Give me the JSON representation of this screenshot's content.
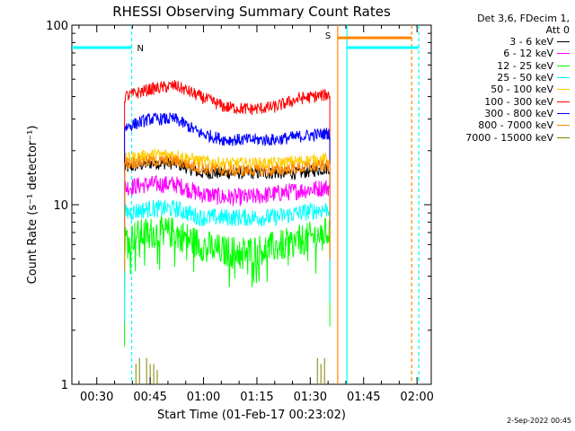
{
  "chart_data": {
    "type": "line",
    "title": "RHESSI Observing Summary Count Rates",
    "xlabel": "Start Time (01-Feb-17 00:23:02)",
    "ylabel": "Count Rate (s⁻¹ detector⁻¹)",
    "yscale": "log",
    "ylim": [
      1,
      100
    ],
    "y_ticks": [
      "1",
      "10",
      "100"
    ],
    "x_unit": "minutes after 00:00 on 01-Feb-17",
    "xlim": [
      23.0,
      124.0
    ],
    "x_ticks": [
      {
        "label": "00:30",
        "value": 30
      },
      {
        "label": "00:45",
        "value": 45
      },
      {
        "label": "01:00",
        "value": 60
      },
      {
        "label": "01:15",
        "value": 75
      },
      {
        "label": "01:30",
        "value": 90
      },
      {
        "label": "01:45",
        "value": 105
      },
      {
        "label": "02:00",
        "value": 120
      }
    ],
    "data_interval_minutes": [
      37.8,
      95.5
    ],
    "series": [
      {
        "name": "3 - 6 keV",
        "color": "#000000",
        "x": [
          38,
          45,
          52,
          59,
          66,
          73,
          80,
          87,
          95
        ],
        "values": [
          16,
          17,
          17,
          15,
          15,
          15,
          15,
          15,
          16
        ]
      },
      {
        "name": "6 - 12 keV",
        "color": "#ff00ff",
        "x": [
          38,
          45,
          52,
          59,
          66,
          73,
          80,
          87,
          95
        ],
        "values": [
          12.5,
          13,
          13,
          11.5,
          11,
          11,
          11.5,
          12,
          12.5
        ]
      },
      {
        "name": "12 - 25 keV",
        "color": "#00ff00",
        "x": [
          38,
          45,
          52,
          59,
          66,
          73,
          80,
          87,
          95
        ],
        "values": [
          6.5,
          7,
          7,
          6,
          5.5,
          5.5,
          5.8,
          6.3,
          7
        ]
      },
      {
        "name": "25 - 50 keV",
        "color": "#00ffff",
        "x": [
          38,
          45,
          52,
          59,
          66,
          73,
          80,
          87,
          95
        ],
        "values": [
          9,
          9.5,
          9.5,
          8.5,
          8.5,
          8.5,
          8.5,
          9,
          9.5
        ]
      },
      {
        "name": "50 - 100 keV",
        "color": "#ffcc00",
        "x": [
          38,
          45,
          52,
          59,
          66,
          73,
          80,
          87,
          95
        ],
        "values": [
          18,
          19,
          19,
          17.5,
          17,
          17,
          17,
          17.5,
          18
        ]
      },
      {
        "name": "100 - 300 keV",
        "color": "#ff0000",
        "x": [
          38,
          45,
          52,
          59,
          66,
          73,
          80,
          87,
          95
        ],
        "values": [
          40,
          44,
          46,
          40,
          35,
          34,
          35,
          39,
          41
        ]
      },
      {
        "name": "300 - 800 keV",
        "color": "#0000ff",
        "x": [
          38,
          45,
          52,
          59,
          66,
          73,
          80,
          87,
          95
        ],
        "values": [
          27,
          30,
          30,
          25,
          23,
          23,
          23,
          24,
          25
        ]
      },
      {
        "name": "800 - 7000 keV",
        "color": "#ff8800",
        "x": [
          38,
          45,
          52,
          59,
          66,
          73,
          80,
          87,
          95
        ],
        "values": [
          17,
          17.5,
          17.5,
          16,
          15.5,
          15.5,
          15.5,
          16,
          16.5
        ]
      },
      {
        "name": "7000 - 15000 keV",
        "color": "#808000",
        "x": [
          41,
          42,
          44,
          45,
          46,
          47,
          92,
          93,
          94
        ],
        "values": [
          1.3,
          1.4,
          1.4,
          1.3,
          1.3,
          1.2,
          1.4,
          1.3,
          1.4
        ]
      }
    ],
    "flags": [
      {
        "label": "N",
        "color": "#00ffff",
        "level": 75,
        "start": 23.0,
        "end": 39.8
      },
      {
        "label": "S",
        "color": "#ff8800",
        "level": 85,
        "start": 97.7,
        "end": 118.5
      },
      {
        "label": "",
        "color": "#00ffff",
        "level": 75,
        "start": 100.3,
        "end": 120.5
      }
    ],
    "vlines": [
      {
        "x": 39.8,
        "color": "#00ffff",
        "style": "dashed"
      },
      {
        "x": 97.7,
        "color": "#ff8800",
        "style": "solid"
      },
      {
        "x": 100.3,
        "color": "#00ffff",
        "style": "solid"
      },
      {
        "x": 118.5,
        "color": "#ff8800",
        "style": "dashed"
      },
      {
        "x": 120.5,
        "color": "#00ffff",
        "style": "dashed"
      }
    ],
    "grid": false,
    "legend_position": "right"
  },
  "legend": {
    "header_line1": "Det 3,6, FDecim 1,",
    "header_line2": "Att 0"
  },
  "timestamp": "2-Sep-2022 00:45"
}
